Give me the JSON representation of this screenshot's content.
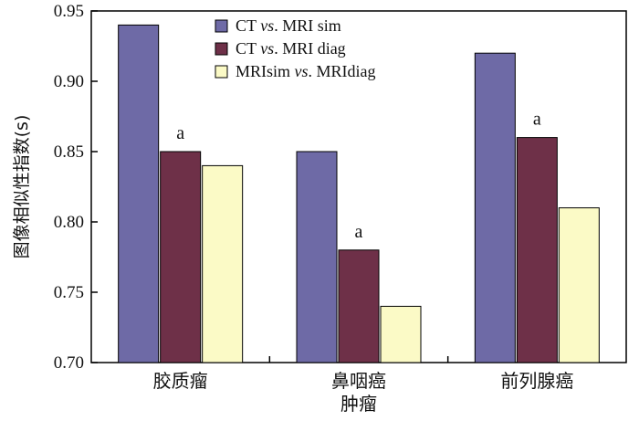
{
  "chart_data": {
    "type": "bar",
    "ylabel": "图像相似性指数(s)",
    "ylim": [
      0.7,
      0.95
    ],
    "yticks": [
      "0.70",
      "0.75",
      "0.80",
      "0.85",
      "0.90",
      "0.95"
    ],
    "categories": [
      [
        "胶质瘤"
      ],
      [
        "鼻咽癌",
        "肿瘤"
      ],
      [
        "前列腺癌"
      ]
    ],
    "series": [
      {
        "name": "CT vs. MRI sim",
        "name_parts": [
          "CT ",
          "vs",
          ". MRI sim"
        ],
        "color": "#6e6aa6",
        "values": [
          0.94,
          0.85,
          0.92
        ]
      },
      {
        "name": "CT vs. MRI diag",
        "name_parts": [
          "CT ",
          "vs",
          ". MRI diag"
        ],
        "color": "#6e3048",
        "values": [
          0.85,
          0.78,
          0.86
        ]
      },
      {
        "name": "MRIsim vs. MRIdiag",
        "name_parts": [
          "MRIsim ",
          "vs",
          ". MRIdiag"
        ],
        "color": "#fbfac6",
        "values": [
          0.84,
          0.74,
          0.81
        ]
      }
    ],
    "annotations": [
      {
        "category": 0,
        "series": 1,
        "text": "a"
      },
      {
        "category": 1,
        "series": 1,
        "text": "a"
      },
      {
        "category": 2,
        "series": 1,
        "text": "a"
      }
    ],
    "legend": "top-center",
    "grid": false
  }
}
